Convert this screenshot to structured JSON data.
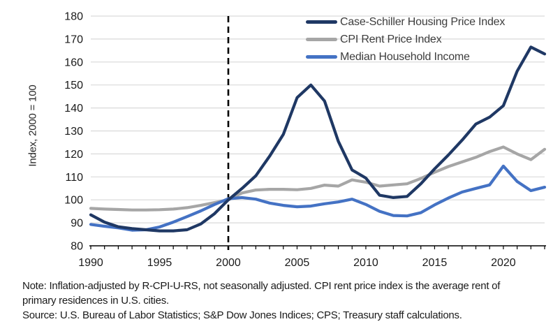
{
  "chart_data": {
    "type": "line",
    "title": "",
    "xlabel": "",
    "ylabel": "Index, 2000 = 100",
    "ylim": [
      80,
      180
    ],
    "y_tick_step": 10,
    "xlim": [
      1990,
      2023
    ],
    "x_tick_labels": [
      "1990",
      "1995",
      "2000",
      "2005",
      "2010",
      "2015",
      "2020"
    ],
    "grid": "horizontal-only",
    "reference_line_x": 2000,
    "reference_line_style": "black-dashed-vertical",
    "legend_position": "top-right-inside",
    "x": [
      1990,
      1991,
      1992,
      1993,
      1994,
      1995,
      1996,
      1997,
      1998,
      1999,
      2000,
      2001,
      2002,
      2003,
      2004,
      2005,
      2006,
      2007,
      2008,
      2009,
      2010,
      2011,
      2012,
      2013,
      2014,
      2015,
      2016,
      2017,
      2018,
      2019,
      2020,
      2021,
      2022,
      2023
    ],
    "series": [
      {
        "name": "Case-Schiller Housing Price Index",
        "color": "#1f3864",
        "values": [
          93.5,
          90.3,
          88.3,
          87.5,
          87,
          86.5,
          86.5,
          87,
          89.5,
          94,
          100,
          105,
          110.5,
          119,
          128.5,
          144.5,
          150,
          143,
          125.5,
          113,
          109.5,
          102,
          101,
          101.5,
          107,
          113.5,
          119.5,
          126,
          133,
          136,
          141,
          156,
          166.5,
          163.5
        ]
      },
      {
        "name": "CPI Rent Price Index",
        "color": "#a6a6a6",
        "values": [
          96.3,
          96,
          95.8,
          95.6,
          95.6,
          95.7,
          96,
          96.6,
          97.6,
          98.8,
          100,
          103,
          104.3,
          104.6,
          104.6,
          104.4,
          105,
          106.4,
          106,
          108.7,
          107.7,
          106,
          106.5,
          107,
          109.3,
          112,
          114.5,
          116.5,
          118.5,
          121,
          123,
          120,
          117.5,
          122
        ]
      },
      {
        "name": "Median Household Income",
        "color": "#4472c4",
        "values": [
          89.3,
          88.5,
          87.8,
          86.8,
          87,
          88.2,
          90.3,
          92.7,
          95.2,
          98,
          100.5,
          101,
          100.3,
          98.6,
          97.6,
          97,
          97.3,
          98.3,
          99.1,
          100.3,
          98,
          95,
          93.2,
          93,
          94.4,
          97.8,
          100.8,
          103.4,
          105,
          106.5,
          114.7,
          108,
          104,
          105.5
        ]
      }
    ],
    "axis_colors": {
      "gridline": "#d9d9d9",
      "axis_line": "#000000",
      "tick_label": "#1a1a1a"
    }
  },
  "notes": {
    "note": "Note: Inflation-adjusted by R-CPI-U-RS, not seasonally adjusted. CPI rent price index is the average rent of primary residences in U.S. cities.",
    "source": "Source: U.S. Bureau of Labor Statistics; S&P Dow Jones Indices; CPS; Treasury staff calculations."
  }
}
